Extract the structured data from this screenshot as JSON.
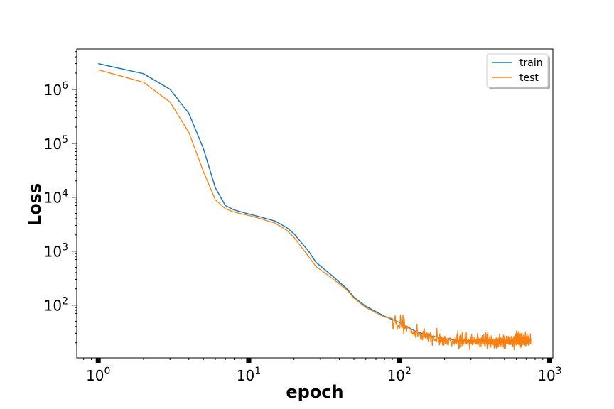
{
  "chart_data": {
    "type": "line",
    "xlabel": "epoch",
    "ylabel": "Loss",
    "xscale": "log",
    "yscale": "log",
    "xlim": [
      0.72,
      1050
    ],
    "ylim": [
      10.5,
      5600000
    ],
    "grid": false,
    "legend_position": "top-right",
    "x_ticks": [
      {
        "value": 1,
        "base": "10",
        "exp": "0"
      },
      {
        "value": 10,
        "base": "10",
        "exp": "1"
      },
      {
        "value": 100,
        "base": "10",
        "exp": "2"
      },
      {
        "value": 1000,
        "base": "10",
        "exp": "3"
      }
    ],
    "y_ticks": [
      {
        "value": 100,
        "base": "10",
        "exp": "2"
      },
      {
        "value": 1000,
        "base": "10",
        "exp": "3"
      },
      {
        "value": 10000,
        "base": "10",
        "exp": "4"
      },
      {
        "value": 100000,
        "base": "10",
        "exp": "5"
      },
      {
        "value": 1000000,
        "base": "10",
        "exp": "6"
      }
    ],
    "series": [
      {
        "name": "train",
        "color": "#1f77b4",
        "points": [
          [
            1,
            3000000
          ],
          [
            2,
            1950000
          ],
          [
            3,
            1000000
          ],
          [
            4,
            360000
          ],
          [
            5,
            80000
          ],
          [
            6,
            15000
          ],
          [
            7,
            7000
          ],
          [
            8,
            5800
          ],
          [
            10,
            4900
          ],
          [
            12,
            4300
          ],
          [
            15,
            3600
          ],
          [
            18,
            2700
          ],
          [
            20,
            2100
          ],
          [
            25,
            1000
          ],
          [
            28,
            620
          ],
          [
            35,
            370
          ],
          [
            45,
            200
          ],
          [
            50,
            140
          ],
          [
            60,
            95
          ],
          [
            80,
            62
          ],
          [
            100,
            48
          ],
          [
            130,
            32
          ],
          [
            160,
            27
          ],
          [
            200,
            24
          ],
          [
            250,
            22
          ],
          [
            350,
            22
          ],
          [
            500,
            22
          ],
          [
            750,
            22
          ]
        ]
      },
      {
        "name": "test",
        "color": "#ff7f0e",
        "points": [
          [
            1,
            2300000
          ],
          [
            2,
            1350000
          ],
          [
            3,
            580000
          ],
          [
            4,
            160000
          ],
          [
            5,
            30000
          ],
          [
            6,
            9000
          ],
          [
            7,
            6100
          ],
          [
            8,
            5300
          ],
          [
            10,
            4600
          ],
          [
            12,
            4000
          ],
          [
            15,
            3300
          ],
          [
            18,
            2400
          ],
          [
            20,
            1800
          ],
          [
            25,
            800
          ],
          [
            28,
            520
          ],
          [
            35,
            330
          ],
          [
            45,
            190
          ],
          [
            50,
            135
          ],
          [
            60,
            90
          ],
          [
            80,
            60
          ],
          [
            100,
            45
          ],
          [
            130,
            30
          ],
          [
            160,
            25
          ],
          [
            200,
            22
          ],
          [
            250,
            21
          ],
          [
            350,
            21
          ],
          [
            500,
            21
          ],
          [
            750,
            21
          ]
        ],
        "noise_start": 90,
        "noise_end": 750
      }
    ]
  }
}
